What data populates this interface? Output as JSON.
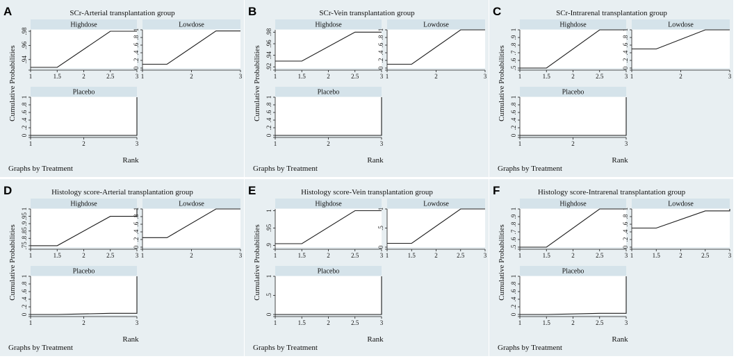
{
  "figure": {
    "colors": {
      "panel_bg": "#e8eff2",
      "strip_bg": "#d5e3ea",
      "plot_bg": "#ffffff",
      "line": "#1a1a1a"
    },
    "common_xlabel": "Rank",
    "common_ylabel": "Cumulative Probabilities",
    "note": "Graphs by Treatment"
  },
  "chart_data": [
    {
      "type": "line",
      "panel_letter": "A",
      "title": "SCr-Arterial transplantation group",
      "xlabel": "Rank",
      "ylabel": "Cumulative Probabilities",
      "note": "Graphs by Treatment",
      "subplots": [
        {
          "name": "Highdose",
          "x": [
            1,
            1.5,
            2.5,
            3
          ],
          "y": [
            0.929,
            0.929,
            0.98,
            0.98
          ],
          "ylim": [
            0.928,
            0.982
          ],
          "yticks": [
            0.92,
            0.94,
            0.96,
            0.98,
            1
          ],
          "ytick_labels": [
            ".92",
            ".94",
            ".96",
            ".98",
            "1"
          ],
          "xlim": [
            1,
            3
          ],
          "xticks": [
            1,
            1.5,
            2,
            2.5,
            3
          ],
          "xtick_labels": [
            "1",
            "1.5",
            "2",
            "2.5",
            "3"
          ]
        },
        {
          "name": "Lowdose",
          "x": [
            1,
            1.5,
            2.5,
            3
          ],
          "y": [
            0.1,
            0.1,
            0.97,
            0.97
          ],
          "ylim": [
            0,
            1
          ],
          "yticks": [
            0,
            0.2,
            0.4,
            0.6,
            0.8,
            1
          ],
          "ytick_labels": [
            "0",
            ".2",
            ".4",
            ".6",
            ".8",
            "1"
          ],
          "xlim": [
            1,
            3
          ],
          "xticks": [
            1,
            2,
            3
          ],
          "xtick_labels": [
            "1",
            "2",
            "3"
          ]
        },
        {
          "name": "Placebo",
          "x": [
            1,
            3,
            3
          ],
          "y": [
            0,
            0,
            1
          ],
          "ylim": [
            0,
            1
          ],
          "yticks": [
            0,
            0.2,
            0.4,
            0.6,
            0.8,
            1
          ],
          "ytick_labels": [
            "0",
            ".2",
            ".4",
            ".6",
            ".8",
            "1"
          ],
          "xlim": [
            1,
            3
          ],
          "xticks": [
            1,
            2,
            3
          ],
          "xtick_labels": [
            "1",
            "2",
            "3"
          ]
        }
      ]
    },
    {
      "type": "line",
      "panel_letter": "B",
      "title": "SCr-Vein transplantation group",
      "xlabel": "Rank",
      "ylabel": "Cumulative Probabilities",
      "note": "Graphs by Treatment",
      "subplots": [
        {
          "name": "Highdose",
          "x": [
            1,
            1.5,
            2.5,
            3
          ],
          "y": [
            0.93,
            0.93,
            0.98,
            0.98
          ],
          "ylim": [
            0.918,
            0.984
          ],
          "yticks": [
            0.92,
            0.94,
            0.96,
            0.98,
            1
          ],
          "ytick_labels": [
            ".92",
            ".94",
            ".96",
            ".98",
            "1"
          ],
          "xlim": [
            1,
            3
          ],
          "xticks": [
            1,
            1.5,
            2,
            2.5,
            3
          ],
          "xtick_labels": [
            "1",
            "1.5",
            "2",
            "2.5",
            "3"
          ]
        },
        {
          "name": "Lowdose",
          "x": [
            1,
            1.5,
            2.5,
            3
          ],
          "y": [
            0.1,
            0.1,
            1,
            1
          ],
          "ylim": [
            0,
            1
          ],
          "yticks": [
            0,
            0.2,
            0.4,
            0.6,
            0.8,
            1
          ],
          "ytick_labels": [
            "0",
            ".2",
            ".4",
            ".6",
            ".8",
            "1"
          ],
          "xlim": [
            1,
            3
          ],
          "xticks": [
            1,
            2,
            3
          ],
          "xtick_labels": [
            "1",
            "2",
            "3"
          ]
        },
        {
          "name": "Placebo",
          "x": [
            1,
            3,
            3
          ],
          "y": [
            0,
            0,
            1
          ],
          "ylim": [
            0,
            1
          ],
          "yticks": [
            0,
            0.2,
            0.4,
            0.6,
            0.8,
            1
          ],
          "ytick_labels": [
            "0",
            ".2",
            ".4",
            ".6",
            ".8",
            "1"
          ],
          "xlim": [
            1,
            3
          ],
          "xticks": [
            1,
            2,
            3
          ],
          "xtick_labels": [
            "1",
            "2",
            "3"
          ]
        }
      ]
    },
    {
      "type": "line",
      "panel_letter": "C",
      "title": "SCr-Intrarenal transplantation group",
      "xlabel": "Rank",
      "ylabel": "Cumulative Probabilities",
      "note": "Graphs by Treatment",
      "subplots": [
        {
          "name": "Highdose",
          "x": [
            1,
            1.5,
            2.5,
            3
          ],
          "y": [
            0.5,
            0.5,
            1,
            1
          ],
          "ylim": [
            0.5,
            1
          ],
          "yticks": [
            0.5,
            0.6,
            0.7,
            0.8,
            0.9,
            1
          ],
          "ytick_labels": [
            ".5",
            ".6",
            ".7",
            ".8",
            ".9",
            "1"
          ],
          "xlim": [
            1,
            3
          ],
          "xticks": [
            1,
            1.5,
            2,
            2.5,
            3
          ],
          "xtick_labels": [
            "1",
            "1.5",
            "2",
            "2.5",
            "3"
          ]
        },
        {
          "name": "Lowdose",
          "x": [
            1,
            1.5,
            2.5,
            3
          ],
          "y": [
            0.5,
            0.5,
            1,
            1
          ],
          "ylim": [
            0,
            1
          ],
          "yticks": [
            0,
            0.2,
            0.4,
            0.6,
            0.8,
            1
          ],
          "ytick_labels": [
            "0",
            ".2",
            ".4",
            ".6",
            ".8",
            "1"
          ],
          "xlim": [
            1,
            3
          ],
          "xticks": [
            1,
            2,
            3
          ],
          "xtick_labels": [
            "1",
            "2",
            "3"
          ]
        },
        {
          "name": "Placebo",
          "x": [
            1,
            3,
            3
          ],
          "y": [
            0,
            0,
            1
          ],
          "ylim": [
            0,
            1
          ],
          "yticks": [
            0,
            0.2,
            0.4,
            0.6,
            0.8,
            1
          ],
          "ytick_labels": [
            "0",
            ".2",
            ".4",
            ".6",
            ".8",
            "1"
          ],
          "xlim": [
            1,
            3
          ],
          "xticks": [
            1,
            2,
            3
          ],
          "xtick_labels": [
            "1",
            "2",
            "3"
          ]
        }
      ]
    },
    {
      "type": "line",
      "panel_letter": "D",
      "title": "Histology score-Arterial transplantation group",
      "xlabel": "Rank",
      "ylabel": "Cumulative Probabilities",
      "note": "Graphs by Treatment",
      "subplots": [
        {
          "name": "Highdose",
          "x": [
            1,
            1.5,
            2.5,
            3,
            3
          ],
          "y": [
            0.75,
            0.75,
            0.95,
            0.95,
            1
          ],
          "ylim": [
            0.74,
            1
          ],
          "yticks": [
            0.75,
            0.8,
            0.85,
            0.9,
            0.95,
            1
          ],
          "ytick_labels": [
            ".75",
            ".8",
            ".85",
            ".9",
            ".95",
            "1"
          ],
          "xlim": [
            1,
            3
          ],
          "xticks": [
            1,
            1.5,
            2,
            2.5,
            3
          ],
          "xtick_labels": [
            "1",
            "1.5",
            "2",
            "2.5",
            "3"
          ]
        },
        {
          "name": "Lowdose",
          "x": [
            1,
            1.5,
            2.5,
            3
          ],
          "y": [
            0.25,
            0.25,
            1,
            1
          ],
          "ylim": [
            0,
            1
          ],
          "yticks": [
            0,
            0.2,
            0.4,
            0.6,
            0.8,
            1
          ],
          "ytick_labels": [
            "0",
            ".2",
            ".4",
            ".6",
            ".8",
            "1"
          ],
          "xlim": [
            1,
            3
          ],
          "xticks": [
            1,
            2,
            3
          ],
          "xtick_labels": [
            "1",
            "2",
            "3"
          ]
        },
        {
          "name": "Placebo",
          "x": [
            1,
            1.5,
            2.5,
            3,
            3
          ],
          "y": [
            0,
            0,
            0.03,
            0.03,
            1
          ],
          "ylim": [
            0,
            1
          ],
          "yticks": [
            0,
            0.2,
            0.4,
            0.6,
            0.8,
            1
          ],
          "ytick_labels": [
            "0",
            ".2",
            ".4",
            ".6",
            ".8",
            "1"
          ],
          "xlim": [
            1,
            3
          ],
          "xticks": [
            1,
            2,
            3
          ],
          "xtick_labels": [
            "1",
            "2",
            "3"
          ]
        }
      ]
    },
    {
      "type": "line",
      "panel_letter": "E",
      "title": "Histology score-Vein transplantation group",
      "xlabel": "Rank",
      "ylabel": "Cumulative Probabilities",
      "note": "Graphs by Treatment",
      "subplots": [
        {
          "name": "Highdose",
          "x": [
            1,
            1.5,
            2.5,
            3
          ],
          "y": [
            0.905,
            0.905,
            1,
            1
          ],
          "ylim": [
            0.895,
            1.005
          ],
          "yticks": [
            0.9,
            0.95,
            1
          ],
          "ytick_labels": [
            ".9",
            ".95",
            "1"
          ],
          "xlim": [
            1,
            3
          ],
          "xticks": [
            1,
            1.5,
            2,
            2.5,
            3
          ],
          "xtick_labels": [
            "1",
            "1.5",
            "2",
            "2.5",
            "3"
          ]
        },
        {
          "name": "Lowdose",
          "x": [
            1,
            1.5,
            2.5,
            3
          ],
          "y": [
            0.1,
            0.1,
            1,
            1
          ],
          "ylim": [
            0,
            1
          ],
          "yticks": [
            0,
            0.5,
            1
          ],
          "ytick_labels": [
            "0",
            ".5",
            "1"
          ],
          "xlim": [
            1,
            3
          ],
          "xticks": [
            1,
            1.5,
            2,
            2.5,
            3
          ],
          "xtick_labels": [
            "1",
            "1.5",
            "2",
            "2.5",
            "3"
          ]
        },
        {
          "name": "Placebo",
          "x": [
            1,
            3,
            3
          ],
          "y": [
            0,
            0,
            1
          ],
          "ylim": [
            0,
            1
          ],
          "yticks": [
            0,
            0.5,
            1
          ],
          "ytick_labels": [
            "0",
            ".5",
            "1"
          ],
          "xlim": [
            1,
            3
          ],
          "xticks": [
            1,
            1.5,
            2,
            2.5,
            3
          ],
          "xtick_labels": [
            "1",
            "1.5",
            "2",
            "2.5",
            "3"
          ]
        }
      ]
    },
    {
      "type": "line",
      "panel_letter": "F",
      "title": "Histology score-Intrarenal transplantation group",
      "xlabel": "Rank",
      "ylabel": "Cumulative Probabilities",
      "note": "Graphs by Treatment",
      "subplots": [
        {
          "name": "Highdose",
          "x": [
            1,
            1.5,
            2.5,
            3
          ],
          "y": [
            0.5,
            0.5,
            1,
            1
          ],
          "ylim": [
            0.5,
            1
          ],
          "yticks": [
            0.5,
            0.6,
            0.7,
            0.8,
            0.9,
            1
          ],
          "ytick_labels": [
            ".5",
            ".6",
            ".7",
            ".8",
            ".9",
            "1"
          ],
          "xlim": [
            1,
            3
          ],
          "xticks": [
            1,
            1.5,
            2,
            2.5,
            3
          ],
          "xtick_labels": [
            "1",
            "1.5",
            "2",
            "2.5",
            "3"
          ]
        },
        {
          "name": "Lowdose",
          "x": [
            1,
            1.5,
            2.5,
            3,
            3
          ],
          "y": [
            0.5,
            0.5,
            0.95,
            0.95,
            1
          ],
          "ylim": [
            0,
            1
          ],
          "yticks": [
            0,
            0.2,
            0.4,
            0.6,
            0.8,
            1
          ],
          "ytick_labels": [
            "0",
            ".2",
            ".4",
            ".6",
            ".8",
            "1"
          ],
          "xlim": [
            1,
            3
          ],
          "xticks": [
            1,
            1.5,
            2,
            2.5,
            3
          ],
          "xtick_labels": [
            "1",
            "1.5",
            "2",
            "2.5",
            "3"
          ]
        },
        {
          "name": "Placebo",
          "x": [
            1,
            1.5,
            2.5,
            3,
            3
          ],
          "y": [
            0,
            0,
            0.03,
            0.03,
            1
          ],
          "ylim": [
            0,
            1
          ],
          "yticks": [
            0,
            0.2,
            0.4,
            0.6,
            0.8,
            1
          ],
          "ytick_labels": [
            "0",
            ".2",
            ".4",
            ".6",
            ".8",
            "1"
          ],
          "xlim": [
            1,
            3
          ],
          "xticks": [
            1,
            1.5,
            2,
            2.5,
            3
          ],
          "xtick_labels": [
            "1",
            "1.5",
            "2",
            "2.5",
            "3"
          ]
        }
      ]
    }
  ]
}
